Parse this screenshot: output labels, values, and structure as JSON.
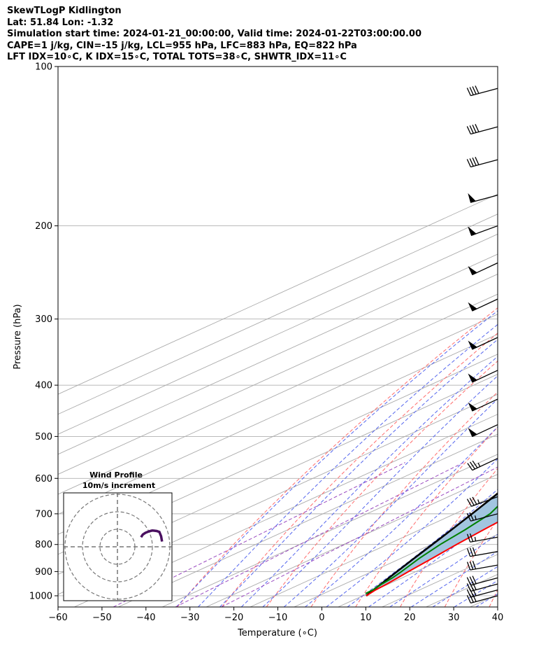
{
  "header": {
    "line1": "SkewTLogP Kidlington",
    "line2": "Lat: 51.84   Lon: -1.32",
    "line3": "Simulation start time: 2024-01-21_00:00:00, Valid time: 2024-01-22T03:00:00.00",
    "line4": "CAPE=1 j/kg, CIN=-15 j/kg, LCL=955 hPa, LFC=883 hPa, EQ=822 hPa",
    "line5": "LFT IDX=10∘C, K IDX=15∘C, TOTAL TOTS=38∘C, SHWTR_IDX=11∘C"
  },
  "chart_data": {
    "type": "line",
    "subtype": "skew-t-log-p",
    "xlabel": "Temperature (∘C)",
    "ylabel": "Pressure (hPa)",
    "xlim": [
      -60,
      40
    ],
    "ylim": [
      1050,
      100
    ],
    "y_scale": "log",
    "x_ticks": [
      "−60",
      "−50",
      "−40",
      "−30",
      "−20",
      "−10",
      "0",
      "10",
      "20",
      "30",
      "40"
    ],
    "y_ticks": [
      "100",
      "200",
      "300",
      "400",
      "500",
      "600",
      "700",
      "800",
      "900",
      "1000"
    ],
    "grid": true,
    "colors": {
      "temperature": "#ff0000",
      "dewpoint": "#008000",
      "parcel": "#000000",
      "cape_fill": "#a2c5e0",
      "dry_adiabats": "#ff6b6b",
      "moist_adiabats": "#5566ee",
      "mixing_ratio": "#9a4ac0",
      "isotherms": "#aaaaaa",
      "hodograph": "#4a1060"
    },
    "series": [
      {
        "key": "temperature",
        "p": [
          1000,
          975,
          950,
          925,
          900,
          850,
          800,
          750,
          700,
          650,
          600,
          550,
          500,
          475,
          450,
          400,
          350,
          300,
          275,
          250,
          225,
          200,
          180,
          160,
          140,
          125,
          112,
          100
        ],
        "t": [
          10.8,
          10.0,
          9.6,
          9.0,
          8.3,
          7.1,
          5.7,
          4.5,
          3.3,
          2.3,
          0.8,
          -1.0,
          -3.0,
          -5.2,
          -7.6,
          -13.0,
          -19.5,
          -27.5,
          -32.5,
          -38.5,
          -45.5,
          -53.5,
          -55.0,
          -55.5,
          -53.5,
          -51.5,
          -49.5,
          -48.0
        ]
      },
      {
        "key": "dewpoint",
        "p": [
          990,
          975,
          950,
          925,
          900,
          850,
          800,
          750,
          700,
          650,
          600,
          550,
          500,
          470,
          440,
          410,
          380,
          350,
          320,
          290,
          260,
          230,
          200,
          170,
          150,
          140,
          125,
          112,
          100
        ],
        "t": [
          9.5,
          9.4,
          8.5,
          7.8,
          6.7,
          4.2,
          2.0,
          0.3,
          -2.0,
          -6.5,
          -14.0,
          -20.0,
          -31.0,
          -37.5,
          -36.0,
          -34.0,
          -29.0,
          -26.0,
          -27.0,
          -29.0,
          -33.0,
          -38.5,
          -45.0,
          -52.0,
          -58.0,
          -62.5,
          -63.5,
          -63.5,
          -64.0
        ]
      },
      {
        "key": "parcel",
        "p": [
          1000,
          975,
          950,
          925,
          900,
          850,
          800,
          750,
          700,
          650,
          600,
          550,
          500,
          450,
          400,
          350,
          300,
          250,
          200,
          150,
          100
        ],
        "t": [
          10.8,
          9.5,
          8.3,
          7.0,
          5.7,
          3.0,
          0.2,
          -2.8,
          -6.1,
          -9.7,
          -13.7,
          -18.1,
          -23.0,
          -28.6,
          -35.0,
          -42.5,
          -51.3,
          -61.8,
          -74.5,
          -90.4,
          -112.5
        ]
      }
    ],
    "wind_barbs": [
      {
        "p": 1000,
        "dir": 255,
        "speed": 30
      },
      {
        "p": 975,
        "dir": 255,
        "speed": 30
      },
      {
        "p": 950,
        "dir": 255,
        "speed": 30
      },
      {
        "p": 925,
        "dir": 255,
        "speed": 30
      },
      {
        "p": 875,
        "dir": 260,
        "speed": 30
      },
      {
        "p": 825,
        "dir": 260,
        "speed": 30
      },
      {
        "p": 775,
        "dir": 260,
        "speed": 25
      },
      {
        "p": 700,
        "dir": 255,
        "speed": 25
      },
      {
        "p": 650,
        "dir": 250,
        "speed": 35
      },
      {
        "p": 550,
        "dir": 245,
        "speed": 35
      },
      {
        "p": 475,
        "dir": 245,
        "speed": 50
      },
      {
        "p": 425,
        "dir": 245,
        "speed": 50
      },
      {
        "p": 375,
        "dir": 245,
        "speed": 50
      },
      {
        "p": 325,
        "dir": 245,
        "speed": 50
      },
      {
        "p": 275,
        "dir": 245,
        "speed": 50
      },
      {
        "p": 235,
        "dir": 245,
        "speed": 50
      },
      {
        "p": 200,
        "dir": 250,
        "speed": 50
      },
      {
        "p": 175,
        "dir": 255,
        "speed": 50
      },
      {
        "p": 150,
        "dir": 255,
        "speed": 40
      },
      {
        "p": 130,
        "dir": 255,
        "speed": 40
      },
      {
        "p": 110,
        "dir": 255,
        "speed": 40
      }
    ],
    "hodograph": {
      "title": "Wind Profile",
      "subtitle": "10m/s increment",
      "rings": [
        10,
        20,
        30
      ],
      "u": [
        13.5,
        14.5,
        16.0,
        18.0,
        19.5,
        20.0,
        21.0,
        22.5,
        24.0,
        25.0,
        25.5
      ],
      "v": [
        5.5,
        7.0,
        8.0,
        8.8,
        9.2,
        9.3,
        9.2,
        9.0,
        8.5,
        6.0,
        3.0
      ]
    }
  }
}
